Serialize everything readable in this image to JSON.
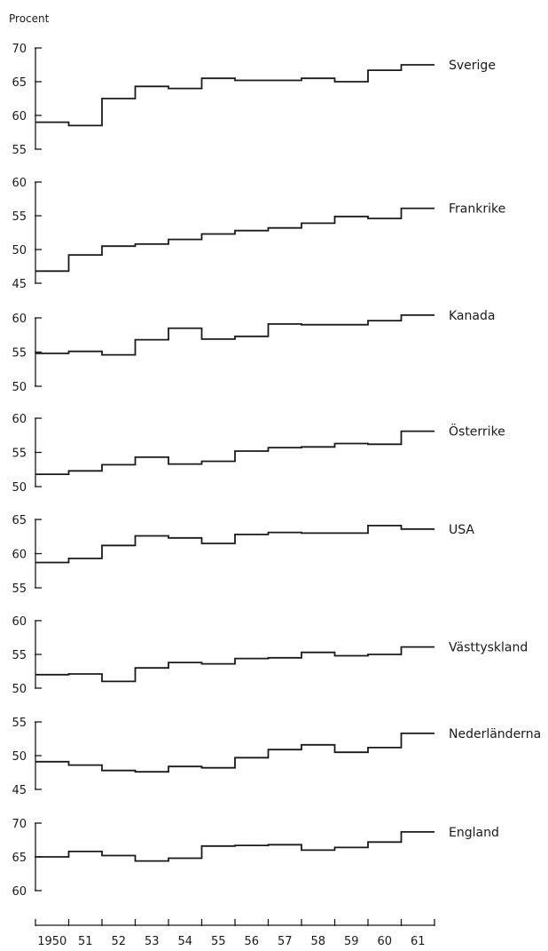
{
  "chart_data": {
    "type": "line",
    "style": "step",
    "ylabel": "Procent",
    "x_labels": [
      "1950",
      "51",
      "52",
      "53",
      "54",
      "55",
      "56",
      "57",
      "58",
      "59",
      "60",
      "61"
    ],
    "panels": [
      {
        "name": "Sverige",
        "ylim": [
          55,
          70
        ],
        "yticks": [
          55,
          60,
          65,
          70
        ],
        "values": [
          59,
          58.5,
          62.5,
          64.3,
          64,
          65.5,
          65.2,
          65.2,
          65.5,
          65,
          66.7,
          67.5
        ]
      },
      {
        "name": "Frankrike",
        "ylim": [
          45,
          60
        ],
        "yticks": [
          45,
          50,
          55,
          60
        ],
        "values": [
          46.8,
          49.2,
          50.5,
          50.8,
          51.5,
          52.3,
          52.8,
          53.2,
          53.9,
          54.9,
          54.6,
          56.1
        ]
      },
      {
        "name": "Kanada",
        "ylim": [
          50,
          60
        ],
        "yticks": [
          50,
          55,
          60
        ],
        "values": [
          54.8,
          55.1,
          54.6,
          56.8,
          58.5,
          56.9,
          57.3,
          59.1,
          59.0,
          59.0,
          59.6,
          60.4
        ]
      },
      {
        "name": "Österrike",
        "ylim": [
          50,
          60
        ],
        "yticks": [
          50,
          55,
          60
        ],
        "values": [
          51.8,
          52.3,
          53.2,
          54.3,
          53.3,
          53.7,
          55.2,
          55.7,
          55.8,
          56.3,
          56.2,
          58.1
        ]
      },
      {
        "name": "USA",
        "ylim": [
          55,
          65
        ],
        "yticks": [
          55,
          60,
          65
        ],
        "values": [
          58.7,
          59.3,
          61.2,
          62.6,
          62.3,
          61.5,
          62.8,
          63.1,
          63.0,
          63.0,
          64.1,
          63.6
        ]
      },
      {
        "name": "Västtyskland",
        "ylim": [
          50,
          60
        ],
        "yticks": [
          50,
          55,
          60
        ],
        "values": [
          52.0,
          52.1,
          51.0,
          53.0,
          53.8,
          53.6,
          54.4,
          54.5,
          55.3,
          54.8,
          55.0,
          56.1
        ]
      },
      {
        "name": "Nederländerna",
        "ylim": [
          45,
          55
        ],
        "yticks": [
          45,
          50,
          55
        ],
        "values": [
          49.1,
          48.6,
          47.8,
          47.6,
          48.4,
          48.2,
          49.7,
          50.9,
          51.6,
          50.5,
          51.2,
          53.3
        ]
      },
      {
        "name": "England",
        "ylim": [
          60,
          70
        ],
        "yticks": [
          60,
          65,
          70
        ],
        "values": [
          65.0,
          65.8,
          65.2,
          64.4,
          64.8,
          66.6,
          66.7,
          66.8,
          66.0,
          66.4,
          67.2,
          68.7
        ]
      }
    ]
  }
}
